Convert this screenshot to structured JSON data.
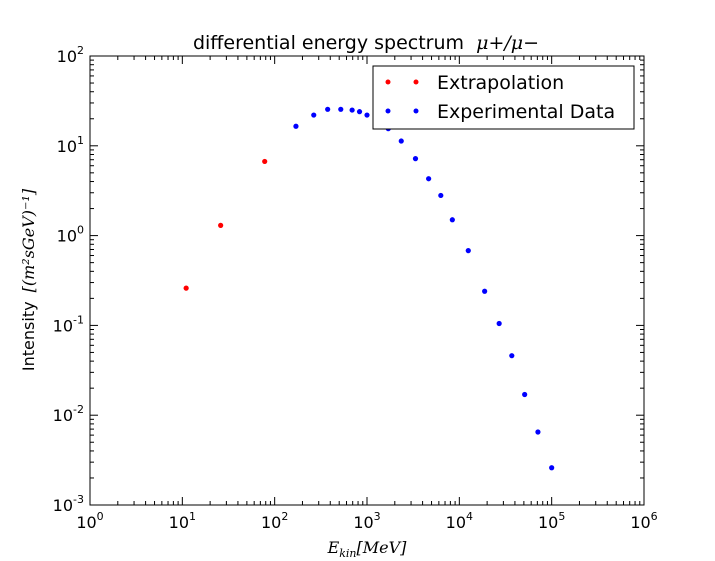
{
  "chart_data": {
    "type": "scatter",
    "title": "differential energy spectrum",
    "title_math": "μ+/μ−",
    "xlabel": "E",
    "xlabel_sub": "kin",
    "xlabel_unit": "[MeV]",
    "ylabel": "Intensity",
    "ylabel_unit": "[(m²sGeV)⁻¹]",
    "xscale": "log",
    "yscale": "log",
    "xlim": [
      1,
      1000000
    ],
    "ylim": [
      0.001,
      100
    ],
    "x_ticks": [
      {
        "base": "10",
        "exp": "0"
      },
      {
        "base": "10",
        "exp": "1"
      },
      {
        "base": "10",
        "exp": "2"
      },
      {
        "base": "10",
        "exp": "3"
      },
      {
        "base": "10",
        "exp": "4"
      },
      {
        "base": "10",
        "exp": "5"
      },
      {
        "base": "10",
        "exp": "6"
      }
    ],
    "y_ticks": [
      {
        "base": "10",
        "exp": "-3"
      },
      {
        "base": "10",
        "exp": "-2"
      },
      {
        "base": "10",
        "exp": "-1"
      },
      {
        "base": "10",
        "exp": "0"
      },
      {
        "base": "10",
        "exp": "1"
      },
      {
        "base": "10",
        "exp": "2"
      }
    ],
    "grid": false,
    "legend_position": "top-right",
    "series": [
      {
        "name": "Extrapolation",
        "color": "#ff0000",
        "points": [
          [
            11,
            0.26
          ],
          [
            26,
            1.3
          ],
          [
            78,
            6.7
          ]
        ]
      },
      {
        "name": "Experimental Data",
        "color": "#0000ff",
        "points": [
          [
            170,
            16.5
          ],
          [
            265,
            22
          ],
          [
            375,
            25.5
          ],
          [
            520,
            25.5
          ],
          [
            690,
            25
          ],
          [
            830,
            24
          ],
          [
            1000,
            22
          ],
          [
            1250,
            20
          ],
          [
            1700,
            15.5
          ],
          [
            2350,
            11.3
          ],
          [
            3350,
            7.2
          ],
          [
            4650,
            4.3
          ],
          [
            6300,
            2.8
          ],
          [
            8400,
            1.5
          ],
          [
            12500,
            0.68
          ],
          [
            18800,
            0.24
          ],
          [
            27000,
            0.105
          ],
          [
            37000,
            0.046
          ],
          [
            51000,
            0.017
          ],
          [
            71000,
            0.0065
          ],
          [
            100000,
            0.0026
          ]
        ]
      }
    ]
  }
}
